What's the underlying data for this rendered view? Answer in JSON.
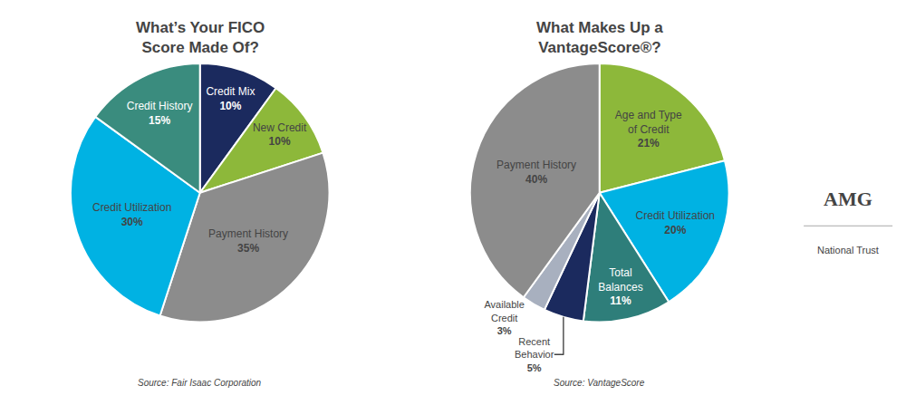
{
  "chart_data": [
    {
      "type": "pie",
      "title": "What’s Your FICO\nScore Made Of?",
      "categories": [
        "Credit Mix",
        "New Credit",
        "Payment History",
        "Credit Utilization",
        "Credit History"
      ],
      "values": [
        10,
        10,
        35,
        30,
        15
      ],
      "value_labels": [
        "10%",
        "10%",
        "35%",
        "30%",
        "15%"
      ],
      "colors": [
        "#1b2a5e",
        "#8db83a",
        "#8c8c8c",
        "#00b2e3",
        "#3a8c7e"
      ],
      "data_labels": true,
      "annotations": [
        "Source: Fair Isaac Corporation"
      ]
    },
    {
      "type": "pie",
      "title": "What Makes Up a\nVantageScore®?",
      "categories": [
        "Age and Type\nof Credit",
        "Credit Utilization",
        "Total\nBalances",
        "Recent\nBehavior",
        "Available\nCredit",
        "Payment History"
      ],
      "values": [
        21,
        20,
        11,
        5,
        3,
        40
      ],
      "value_labels": [
        "21%",
        "20%",
        "11%",
        "5%",
        "3%",
        "40%"
      ],
      "colors": [
        "#8db83a",
        "#00b2e3",
        "#2e7e7a",
        "#1b2a5e",
        "#a8b0bf",
        "#8c8c8c"
      ],
      "data_labels": true,
      "annotations": [
        "Source: VantageScore",
        "AMG",
        "National Trust"
      ]
    }
  ]
}
